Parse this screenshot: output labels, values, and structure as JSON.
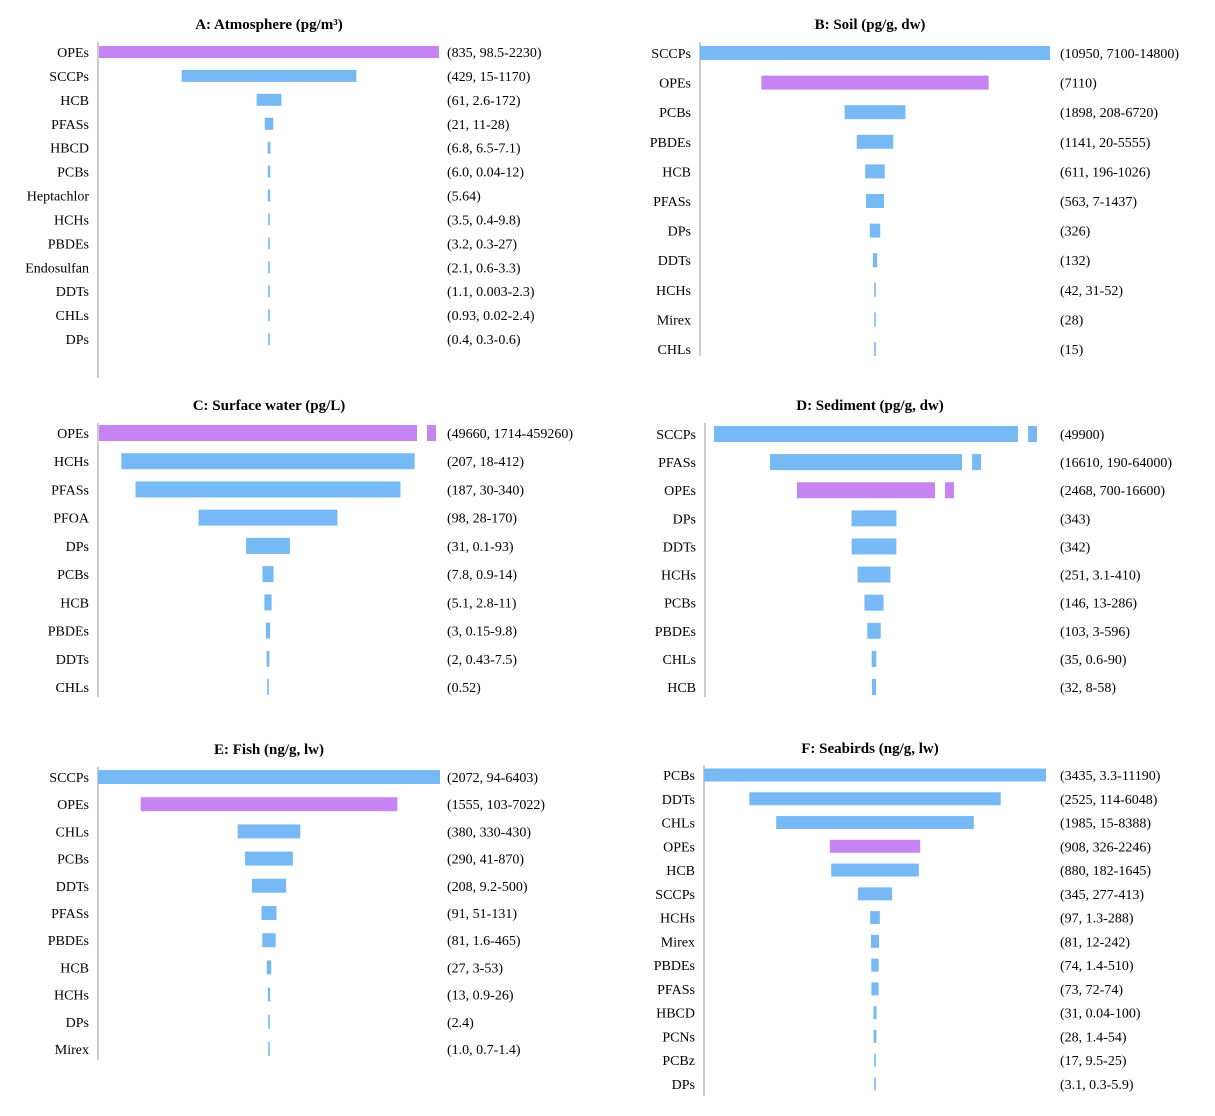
{
  "figure": {
    "panels": [
      {
        "title": "A: Atmosphere (pg/m³)"
      },
      {
        "title": "B: Soil (pg/g, dw)"
      },
      {
        "title": "C: Surface water (pg/L)"
      },
      {
        "title": "D: Sediment (pg/g, dw)"
      },
      {
        "title": "E: Fish (ng/g, lw)"
      },
      {
        "title": "F: Seabirds (ng/g, lw)"
      }
    ]
  },
  "colors": {
    "opes": "#c584f2",
    "other": "#77b9f5",
    "axis": "#999999"
  },
  "chart_data": [
    {
      "type": "bar",
      "title": "A: Atmosphere (pg/m³)",
      "categories": [
        "OPEs",
        "SCCPs",
        "HCB",
        "PFASs",
        "HBCD",
        "PCBs",
        "Heptachlor",
        "HCHs",
        "PBDEs",
        "Endosulfan",
        "DDTs",
        "CHLs",
        "DPs"
      ],
      "values": [
        835,
        429,
        61,
        21,
        6.8,
        6.0,
        5.64,
        3.5,
        3.2,
        2.1,
        1.1,
        0.93,
        0.4
      ],
      "value_labels": [
        "(835, 98.5-2230)",
        "(429, 15-1170)",
        "(61, 2.6-172)",
        "(21, 11-28)",
        "(6.8, 6.5-7.1)",
        "(6.0, 0.04-12)",
        "(5.64)",
        "(3.5, 0.4-9.8)",
        "(3.2, 0.3-27)",
        "(2.1, 0.6-3.3)",
        "(1.1, 0.003-2.3)",
        "(0.93, 0.02-2.4)",
        "(0.4, 0.3-0.6)"
      ],
      "max": 835,
      "broken": []
    },
    {
      "type": "bar",
      "title": "B: Soil (pg/g, dw)",
      "categories": [
        "SCCPs",
        "OPEs",
        "PCBs",
        "PBDEs",
        "HCB",
        "PFASs",
        "DPs",
        "DDTs",
        "HCHs",
        "Mirex",
        "CHLs"
      ],
      "values": [
        10950,
        7110,
        1898,
        1141,
        611,
        563,
        326,
        132,
        42,
        28,
        15
      ],
      "value_labels": [
        "(10950, 7100-14800)",
        "(7110)",
        "(1898, 208-6720)",
        "(1141, 20-5555)",
        "(611, 196-1026)",
        "(563, 7-1437)",
        "(326)",
        "(132)",
        "(42, 31-52)",
        "(28)",
        "(15)"
      ],
      "max": 10950,
      "broken": []
    },
    {
      "type": "bar",
      "title": "C: Surface water (pg/L)",
      "categories": [
        "OPEs",
        "HCHs",
        "PFASs",
        "PFOA",
        "DPs",
        "PCBs",
        "HCB",
        "PBDEs",
        "DDTs",
        "CHLs"
      ],
      "values": [
        49660,
        207,
        187,
        98,
        31,
        7.8,
        5.1,
        3,
        2,
        0.52
      ],
      "value_labels": [
        "(49660, 1714-459260)",
        "(207, 18-412)",
        "(187, 30-340)",
        "(98, 28-170)",
        "(31, 0.1-93)",
        "(7.8, 0.9-14)",
        "(5.1, 2.8-11)",
        "(3, 0.15-9.8)",
        "(2, 0.43-7.5)",
        "(0.52)"
      ],
      "max": 240,
      "broken": [
        "OPEs"
      ]
    },
    {
      "type": "bar",
      "title": "D: Sediment (pg/g, dw)",
      "categories": [
        "SCCPs",
        "PFASs",
        "OPEs",
        "DPs",
        "DDTs",
        "HCHs",
        "PCBs",
        "PBDEs",
        "CHLs",
        "HCB"
      ],
      "values": [
        49900,
        16610,
        2468,
        343,
        342,
        251,
        146,
        103,
        35,
        32
      ],
      "value_labels": [
        "(49900)",
        "(16610, 190-64000)",
        "(2468, 700-16600)",
        "(343)",
        "(342)",
        "(251, 3.1-410)",
        "(146, 13-286)",
        "(103, 3-596)",
        "(35, 0.6-90)",
        "(32, 8-58)"
      ],
      "max": 2600,
      "broken": [
        "SCCPs",
        "PFASs",
        "OPEs"
      ]
    },
    {
      "type": "bar",
      "title": "E: Fish (ng/g, lw)",
      "categories": [
        "SCCPs",
        "OPEs",
        "CHLs",
        "PCBs",
        "DDTs",
        "PFASs",
        "PBDEs",
        "HCB",
        "HCHs",
        "DPs",
        "Mirex"
      ],
      "values": [
        2072,
        1555,
        380,
        290,
        208,
        91,
        81,
        27,
        13,
        2.4,
        1.0
      ],
      "value_labels": [
        "(2072, 94-6403)",
        "(1555, 103-7022)",
        "(380, 330-430)",
        "(290, 41-870)",
        "(208, 9.2-500)",
        "(91, 51-131)",
        "(81, 1.6-465)",
        "(27, 3-53)",
        "(13, 0.9-26)",
        "(2.4)",
        "(1.0, 0.7-1.4)"
      ],
      "max": 2072,
      "broken": []
    },
    {
      "type": "bar",
      "title": "F: Seabirds (ng/g, lw)",
      "categories": [
        "PCBs",
        "DDTs",
        "CHLs",
        "OPEs",
        "HCB",
        "SCCPs",
        "HCHs",
        "Mirex",
        "PBDEs",
        "PFASs",
        "HBCD",
        "PCNs",
        "PCBz",
        "DPs"
      ],
      "values": [
        3435,
        2525,
        1985,
        908,
        880,
        345,
        97,
        81,
        74,
        73,
        31,
        28,
        17,
        3.1
      ],
      "value_labels": [
        "(3435, 3.3-11190)",
        "(2525, 114-6048)",
        "(1985, 15-8388)",
        "(908, 326-2246)",
        "(880, 182-1645)",
        "(345, 277-413)",
        "(97, 1.3-288)",
        "(81, 12-242)",
        "(74, 1.4-510)",
        "(73, 72-74)",
        "(31, 0.04-100)",
        "(28, 1.4-54)",
        "(17, 9.5-25)",
        "(3.1, 0.3-5.9)"
      ],
      "max": 3435,
      "broken": []
    }
  ]
}
